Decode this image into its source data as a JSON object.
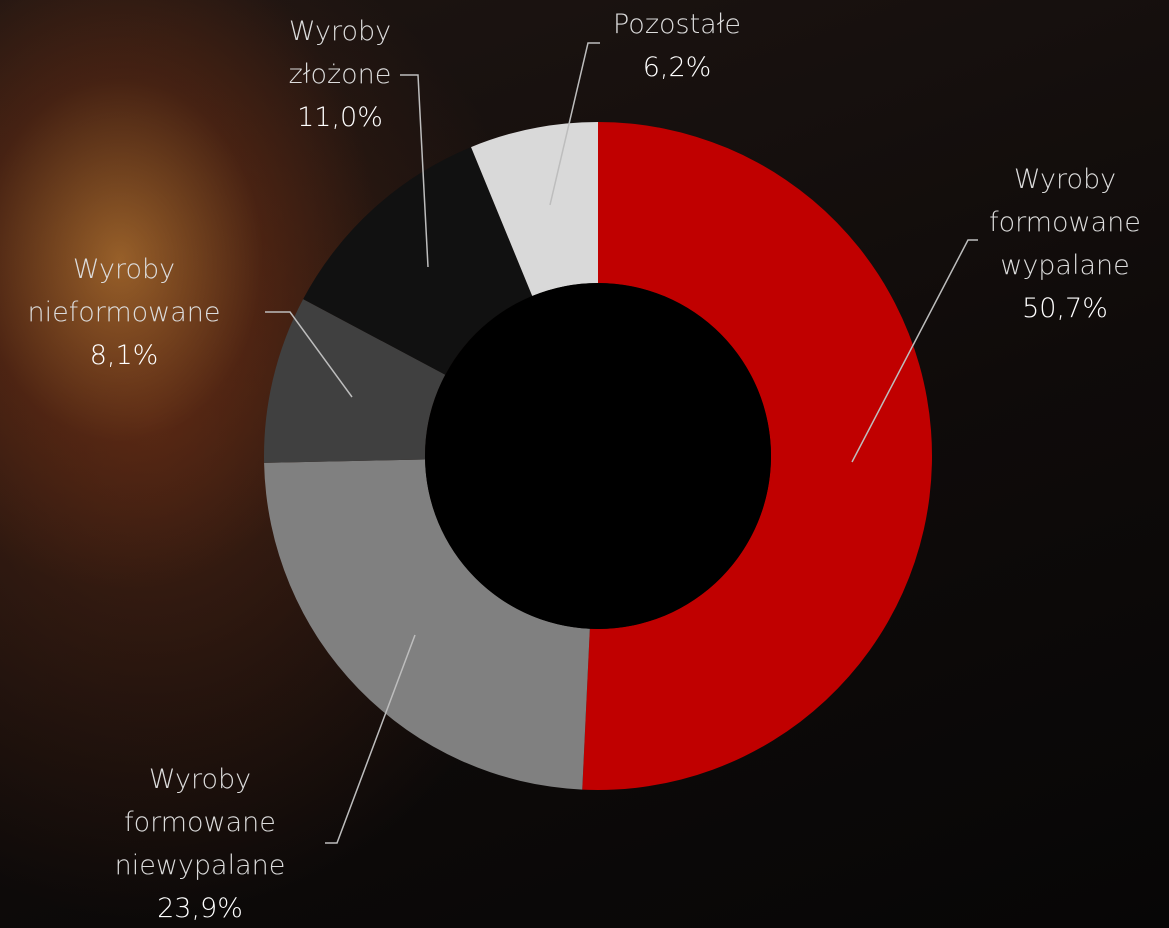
{
  "chart_data": {
    "type": "donut",
    "categories": [
      "Wyroby formowane wypalane",
      "Wyroby formowane niewypalane",
      "Wyroby nieformowane",
      "Wyroby złożone",
      "Pozostałe"
    ],
    "values": [
      50.7,
      23.9,
      8.1,
      11.0,
      6.2
    ],
    "value_labels": [
      "50,7%",
      "23,9%",
      "8,1%",
      "11,0%",
      "6,2%"
    ],
    "colors": [
      "#c00000",
      "#808080",
      "#404040",
      "#111111",
      "#d9d9d9"
    ]
  }
}
